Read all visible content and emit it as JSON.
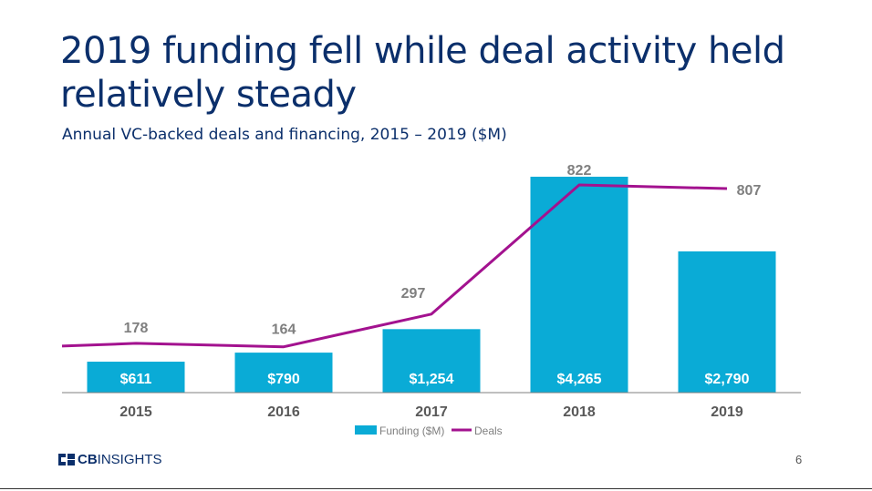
{
  "slide": {
    "title": "2019 funding fell while deal activity held relatively steady",
    "subtitle": "Annual VC-backed deals and financing, 2015 – 2019 ($M)",
    "page_number": "6",
    "logo_bold": "CB",
    "logo_rest": "INSIGHTS"
  },
  "chart_data": {
    "type": "bar",
    "categories": [
      "2015",
      "2016",
      "2017",
      "2018",
      "2019"
    ],
    "series": [
      {
        "name": "Funding ($M)",
        "type": "bar",
        "values": [
          611,
          790,
          1254,
          4265,
          2790
        ],
        "labels": [
          "$611",
          "$790",
          "$1,254",
          "$4,265",
          "$2,790"
        ],
        "color": "#0aabd6"
      },
      {
        "name": "Deals",
        "type": "line",
        "values": [
          178,
          164,
          297,
          822,
          807
        ],
        "labels": [
          "178",
          "164",
          "297",
          "822",
          "807"
        ],
        "color": "#a3128f"
      }
    ],
    "legend": [
      "Funding ($M)",
      "Deals"
    ],
    "legend_position": "bottom",
    "grid": false
  }
}
